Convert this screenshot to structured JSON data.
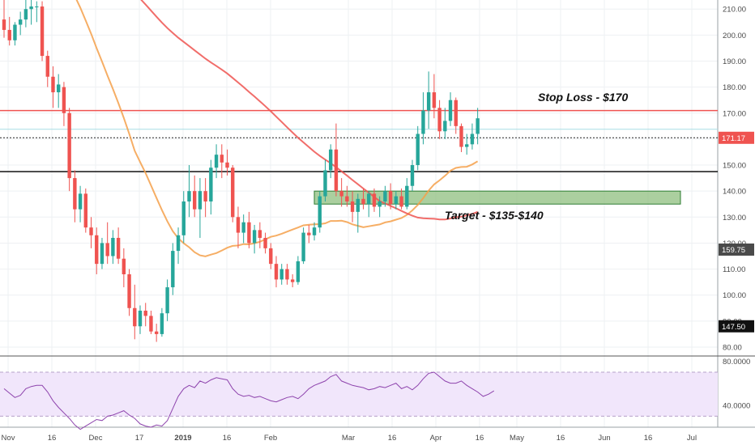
{
  "chart_data": {
    "type": "candlestick",
    "y_axis": {
      "ticks": [
        "210.00",
        "200.00",
        "190.00",
        "180.00",
        "170.00",
        "160.00",
        "150.00",
        "140.00",
        "130.00",
        "120.00",
        "110.00",
        "100.00",
        "90.00",
        "80.00"
      ],
      "range": [
        77.5,
        213.5
      ]
    },
    "x_axis": {
      "ticks": [
        "Nov",
        "16",
        "Dec",
        "17",
        "2019",
        "16",
        "Feb",
        "Mar",
        "16",
        "Apr",
        "16",
        "May",
        "16",
        "Jun",
        "16",
        "Jul"
      ]
    },
    "price_tags": [
      {
        "label": "171.17",
        "value": 160.5,
        "color": "#ef5350"
      },
      {
        "label": "159.75",
        "value": 117.5,
        "color": "#4a4a4a"
      },
      {
        "label": "147.50",
        "value": 88.0,
        "color": "#111111"
      }
    ],
    "levels": {
      "stop_loss": 171.0,
      "level_dotted": 160.5,
      "level_black": 147.5,
      "level_cyan": 163.8
    },
    "target_zone": {
      "low": 135,
      "high": 140
    },
    "annotations": {
      "stop_loss": "Stop Loss - $170",
      "target": "Target - $135-$140"
    },
    "candles": [
      {
        "o": 206,
        "h": 214,
        "l": 199,
        "c": 202
      },
      {
        "o": 202,
        "h": 207,
        "l": 196,
        "c": 198
      },
      {
        "o": 198,
        "h": 205,
        "l": 196,
        "c": 204
      },
      {
        "o": 204,
        "h": 209,
        "l": 200,
        "c": 206
      },
      {
        "o": 206,
        "h": 214,
        "l": 203,
        "c": 210
      },
      {
        "o": 210,
        "h": 214,
        "l": 204,
        "c": 211
      },
      {
        "o": 211,
        "h": 213,
        "l": 205,
        "c": 211
      },
      {
        "o": 211,
        "h": 213,
        "l": 190,
        "c": 192
      },
      {
        "o": 192,
        "h": 194,
        "l": 180,
        "c": 184
      },
      {
        "o": 184,
        "h": 188,
        "l": 172,
        "c": 178
      },
      {
        "o": 178,
        "h": 185,
        "l": 172,
        "c": 181
      },
      {
        "o": 180,
        "h": 182,
        "l": 165,
        "c": 170
      },
      {
        "o": 170,
        "h": 172,
        "l": 140,
        "c": 145
      },
      {
        "o": 145,
        "h": 148,
        "l": 128,
        "c": 133
      },
      {
        "o": 133,
        "h": 142,
        "l": 128,
        "c": 139
      },
      {
        "o": 139,
        "h": 141,
        "l": 124,
        "c": 126
      },
      {
        "o": 126,
        "h": 130,
        "l": 118,
        "c": 123
      },
      {
        "o": 123,
        "h": 126,
        "l": 108,
        "c": 112
      },
      {
        "o": 112,
        "h": 122,
        "l": 110,
        "c": 120
      },
      {
        "o": 120,
        "h": 128,
        "l": 112,
        "c": 115
      },
      {
        "o": 115,
        "h": 125,
        "l": 112,
        "c": 122
      },
      {
        "o": 122,
        "h": 126,
        "l": 112,
        "c": 114
      },
      {
        "o": 114,
        "h": 118,
        "l": 103,
        "c": 108
      },
      {
        "o": 108,
        "h": 110,
        "l": 92,
        "c": 95
      },
      {
        "o": 95,
        "h": 104,
        "l": 83,
        "c": 88
      },
      {
        "o": 88,
        "h": 96,
        "l": 85,
        "c": 94
      },
      {
        "o": 94,
        "h": 97,
        "l": 88,
        "c": 92
      },
      {
        "o": 92,
        "h": 94,
        "l": 85,
        "c": 86
      },
      {
        "o": 86,
        "h": 89,
        "l": 82,
        "c": 85
      },
      {
        "o": 85,
        "h": 95,
        "l": 84,
        "c": 93
      },
      {
        "o": 93,
        "h": 106,
        "l": 90,
        "c": 103
      },
      {
        "o": 103,
        "h": 120,
        "l": 100,
        "c": 117
      },
      {
        "o": 117,
        "h": 126,
        "l": 112,
        "c": 123
      },
      {
        "o": 123,
        "h": 140,
        "l": 120,
        "c": 136
      },
      {
        "o": 136,
        "h": 150,
        "l": 130,
        "c": 140
      },
      {
        "o": 140,
        "h": 146,
        "l": 130,
        "c": 133
      },
      {
        "o": 133,
        "h": 145,
        "l": 122,
        "c": 140
      },
      {
        "o": 140,
        "h": 145,
        "l": 130,
        "c": 136
      },
      {
        "o": 136,
        "h": 152,
        "l": 131,
        "c": 149
      },
      {
        "o": 149,
        "h": 158,
        "l": 145,
        "c": 154
      },
      {
        "o": 154,
        "h": 158,
        "l": 145,
        "c": 151
      },
      {
        "o": 151,
        "h": 156,
        "l": 146,
        "c": 149
      },
      {
        "o": 149,
        "h": 150,
        "l": 128,
        "c": 130
      },
      {
        "o": 130,
        "h": 134,
        "l": 118,
        "c": 124
      },
      {
        "o": 124,
        "h": 131,
        "l": 120,
        "c": 128
      },
      {
        "o": 128,
        "h": 132,
        "l": 118,
        "c": 120
      },
      {
        "o": 120,
        "h": 127,
        "l": 116,
        "c": 125
      },
      {
        "o": 125,
        "h": 128,
        "l": 118,
        "c": 122
      },
      {
        "o": 122,
        "h": 124,
        "l": 116,
        "c": 118
      },
      {
        "o": 118,
        "h": 120,
        "l": 110,
        "c": 112
      },
      {
        "o": 112,
        "h": 115,
        "l": 103,
        "c": 106
      },
      {
        "o": 106,
        "h": 112,
        "l": 104,
        "c": 110
      },
      {
        "o": 110,
        "h": 112,
        "l": 104,
        "c": 106
      },
      {
        "o": 106,
        "h": 108,
        "l": 103,
        "c": 105
      },
      {
        "o": 105,
        "h": 115,
        "l": 104,
        "c": 113
      },
      {
        "o": 113,
        "h": 126,
        "l": 112,
        "c": 124
      },
      {
        "o": 124,
        "h": 127,
        "l": 120,
        "c": 123
      },
      {
        "o": 123,
        "h": 128,
        "l": 121,
        "c": 126
      },
      {
        "o": 126,
        "h": 140,
        "l": 124,
        "c": 138
      },
      {
        "o": 138,
        "h": 152,
        "l": 136,
        "c": 148
      },
      {
        "o": 148,
        "h": 158,
        "l": 145,
        "c": 156
      },
      {
        "o": 156,
        "h": 166,
        "l": 138,
        "c": 140
      },
      {
        "o": 140,
        "h": 145,
        "l": 134,
        "c": 138
      },
      {
        "o": 138,
        "h": 142,
        "l": 134,
        "c": 136
      },
      {
        "o": 136,
        "h": 140,
        "l": 128,
        "c": 132
      },
      {
        "o": 132,
        "h": 139,
        "l": 124,
        "c": 137
      },
      {
        "o": 137,
        "h": 141,
        "l": 133,
        "c": 135
      },
      {
        "o": 135,
        "h": 140,
        "l": 130,
        "c": 139
      },
      {
        "o": 139,
        "h": 141,
        "l": 132,
        "c": 134
      },
      {
        "o": 134,
        "h": 138,
        "l": 130,
        "c": 136
      },
      {
        "o": 136,
        "h": 142,
        "l": 134,
        "c": 140
      },
      {
        "o": 140,
        "h": 143,
        "l": 133,
        "c": 135
      },
      {
        "o": 135,
        "h": 140,
        "l": 133,
        "c": 138
      },
      {
        "o": 138,
        "h": 141,
        "l": 133,
        "c": 134
      },
      {
        "o": 134,
        "h": 145,
        "l": 133,
        "c": 142
      },
      {
        "o": 142,
        "h": 152,
        "l": 140,
        "c": 150
      },
      {
        "o": 150,
        "h": 165,
        "l": 148,
        "c": 162
      },
      {
        "o": 162,
        "h": 178,
        "l": 158,
        "c": 171
      },
      {
        "o": 171,
        "h": 186,
        "l": 164,
        "c": 178
      },
      {
        "o": 178,
        "h": 185,
        "l": 168,
        "c": 172
      },
      {
        "o": 172,
        "h": 175,
        "l": 160,
        "c": 163
      },
      {
        "o": 163,
        "h": 172,
        "l": 160,
        "c": 167
      },
      {
        "o": 167,
        "h": 178,
        "l": 165,
        "c": 175
      },
      {
        "o": 175,
        "h": 176,
        "l": 162,
        "c": 165
      },
      {
        "o": 165,
        "h": 166,
        "l": 155,
        "c": 157
      },
      {
        "o": 157,
        "h": 162,
        "l": 154,
        "c": 158
      },
      {
        "o": 158,
        "h": 166,
        "l": 156,
        "c": 162
      },
      {
        "o": 162,
        "h": 172,
        "l": 158,
        "c": 168
      }
    ],
    "sma_short": {
      "color": "#f5a04a"
    },
    "sma_long": {
      "color": "#ef5350"
    },
    "rsi": {
      "ticks": [
        "80.0000",
        "40.0000"
      ],
      "range": [
        20,
        84
      ],
      "band": [
        30,
        70
      ],
      "values": [
        55,
        51,
        47,
        49,
        55,
        57,
        58,
        58,
        52,
        44,
        38,
        33,
        28,
        22,
        18,
        21,
        24,
        27,
        26,
        30,
        31,
        33,
        35,
        31,
        28,
        23,
        21,
        20,
        22,
        21,
        26,
        37,
        48,
        55,
        58,
        56,
        62,
        60,
        63,
        65,
        64,
        63,
        55,
        50,
        48,
        49,
        47,
        48,
        46,
        44,
        43,
        45,
        47,
        48,
        46,
        50,
        55,
        58,
        60,
        62,
        66,
        68,
        62,
        60,
        58,
        57,
        56,
        54,
        55,
        57,
        56,
        58,
        60,
        55,
        57,
        54,
        58,
        64,
        69,
        70,
        66,
        62,
        60,
        60,
        62,
        58,
        55,
        52,
        48,
        50,
        53
      ]
    }
  }
}
